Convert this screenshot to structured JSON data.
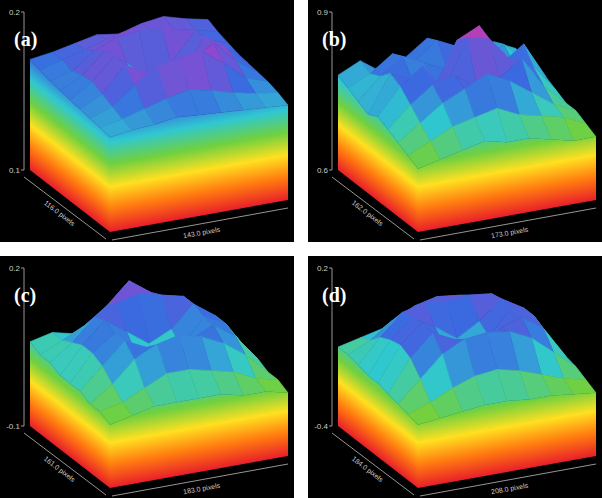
{
  "chart_data": [
    {
      "type": "surface",
      "title": "(a)",
      "xlabel": "143.0 pixels",
      "ylabel": "116.0 pixels",
      "zlim": [
        0.1,
        0.2
      ],
      "zticks": [
        0.1,
        0.2
      ],
      "heights": [
        [
          0.17,
          0.172,
          0.175,
          0.178,
          0.176,
          0.18,
          0.182,
          0.178,
          0.175
        ],
        [
          0.168,
          0.172,
          0.176,
          0.18,
          0.183,
          0.181,
          0.179,
          0.176,
          0.172
        ],
        [
          0.166,
          0.17,
          0.18,
          0.186,
          0.188,
          0.187,
          0.183,
          0.175,
          0.17
        ],
        [
          0.165,
          0.172,
          0.185,
          0.175,
          0.162,
          0.17,
          0.186,
          0.178,
          0.168
        ],
        [
          0.164,
          0.173,
          0.187,
          0.162,
          0.155,
          0.163,
          0.189,
          0.18,
          0.167
        ],
        [
          0.163,
          0.17,
          0.186,
          0.178,
          0.165,
          0.18,
          0.19,
          0.176,
          0.166
        ],
        [
          0.162,
          0.167,
          0.178,
          0.187,
          0.19,
          0.192,
          0.182,
          0.17,
          0.165
        ],
        [
          0.161,
          0.164,
          0.168,
          0.172,
          0.175,
          0.172,
          0.168,
          0.165,
          0.163
        ],
        [
          0.16,
          0.162,
          0.163,
          0.165,
          0.164,
          0.163,
          0.162,
          0.161,
          0.16
        ]
      ]
    },
    {
      "type": "surface",
      "title": "(b)",
      "xlabel": "173.0 pixels",
      "ylabel": "162.0 pixels",
      "zlim": [
        0.6,
        0.9
      ],
      "zticks": [
        0.6,
        0.9
      ],
      "heights": [
        [
          0.78,
          0.8,
          0.77,
          0.79,
          0.82,
          0.78,
          0.8,
          0.79,
          0.77
        ],
        [
          0.77,
          0.79,
          0.82,
          0.8,
          0.83,
          0.81,
          0.78,
          0.8,
          0.76
        ],
        [
          0.76,
          0.8,
          0.83,
          0.81,
          0.79,
          0.84,
          0.82,
          0.78,
          0.75
        ],
        [
          0.75,
          0.82,
          0.8,
          0.78,
          0.86,
          0.88,
          0.8,
          0.83,
          0.76
        ],
        [
          0.76,
          0.81,
          0.84,
          0.79,
          0.88,
          0.87,
          0.82,
          0.8,
          0.75
        ],
        [
          0.75,
          0.79,
          0.82,
          0.83,
          0.8,
          0.81,
          0.84,
          0.78,
          0.74
        ],
        [
          0.74,
          0.77,
          0.8,
          0.82,
          0.84,
          0.82,
          0.79,
          0.76,
          0.74
        ],
        [
          0.73,
          0.75,
          0.77,
          0.78,
          0.79,
          0.77,
          0.76,
          0.75,
          0.73
        ],
        [
          0.72,
          0.73,
          0.74,
          0.75,
          0.74,
          0.74,
          0.73,
          0.72,
          0.72
        ]
      ]
    },
    {
      "type": "surface",
      "title": "(c)",
      "xlabel": "183.0 pixels",
      "ylabel": "161.0 pixels",
      "zlim": [
        -0.1,
        0.2
      ],
      "zticks": [
        -0.1,
        0.2
      ],
      "heights": [
        [
          0.06,
          0.07,
          0.06,
          0.08,
          0.07,
          0.06,
          0.07,
          0.06,
          0.05
        ],
        [
          0.05,
          0.07,
          0.09,
          0.12,
          0.16,
          0.13,
          0.1,
          0.07,
          0.05
        ],
        [
          0.05,
          0.08,
          0.12,
          0.14,
          0.15,
          0.14,
          0.13,
          0.09,
          0.05
        ],
        [
          0.04,
          0.09,
          0.13,
          0.1,
          0.07,
          0.09,
          0.13,
          0.1,
          0.05
        ],
        [
          0.04,
          0.09,
          0.12,
          0.07,
          0.05,
          0.07,
          0.12,
          0.1,
          0.04
        ],
        [
          0.04,
          0.08,
          0.12,
          0.1,
          0.08,
          0.1,
          0.12,
          0.09,
          0.04
        ],
        [
          0.03,
          0.06,
          0.1,
          0.12,
          0.13,
          0.12,
          0.1,
          0.07,
          0.03
        ],
        [
          0.03,
          0.04,
          0.06,
          0.08,
          0.08,
          0.07,
          0.06,
          0.04,
          0.03
        ],
        [
          0.02,
          0.03,
          0.04,
          0.04,
          0.04,
          0.04,
          0.03,
          0.03,
          0.02
        ]
      ]
    },
    {
      "type": "surface",
      "title": "(d)",
      "xlabel": "208.0 pixels",
      "ylabel": "184.0 pixels",
      "zlim": [
        -0.4,
        0.2
      ],
      "zticks": [
        -0.4,
        0.2
      ],
      "heights": [
        [
          -0.1,
          -0.08,
          -0.06,
          -0.05,
          -0.04,
          -0.05,
          -0.07,
          -0.06,
          -0.08
        ],
        [
          -0.1,
          -0.06,
          0,
          0.04,
          0.06,
          0.05,
          0.02,
          -0.04,
          -0.08
        ],
        [
          -0.11,
          -0.02,
          0.06,
          0.08,
          0.07,
          0.08,
          0.07,
          0,
          -0.08
        ],
        [
          -0.12,
          0,
          0.07,
          0.02,
          -0.04,
          0.01,
          0.08,
          0.03,
          -0.09
        ],
        [
          -0.12,
          0.01,
          0.08,
          -0.03,
          -0.06,
          -0.02,
          0.08,
          0.03,
          -0.1
        ],
        [
          -0.13,
          -0.01,
          0.07,
          0.03,
          0.01,
          0.04,
          0.07,
          0.01,
          -0.11
        ],
        [
          -0.14,
          -0.06,
          0.02,
          0.06,
          0.07,
          0.06,
          0.02,
          -0.05,
          -0.12
        ],
        [
          -0.15,
          -0.12,
          -0.08,
          -0.05,
          -0.04,
          -0.06,
          -0.09,
          -0.12,
          -0.14
        ],
        [
          -0.16,
          -0.15,
          -0.14,
          -0.13,
          -0.13,
          -0.14,
          -0.14,
          -0.15,
          -0.16
        ]
      ]
    }
  ]
}
